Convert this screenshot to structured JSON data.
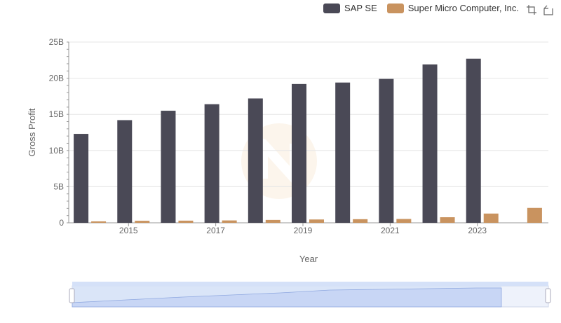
{
  "legend": [
    {
      "name": "SAP SE",
      "color": "#4a4956"
    },
    {
      "name": "Super Micro Computer, Inc.",
      "color": "#c9935f"
    }
  ],
  "toolbox": [
    "zoom-icon",
    "zoom-reset-icon"
  ],
  "chart_data": {
    "type": "bar",
    "xlabel": "Year",
    "ylabel": "Gross Profit",
    "categories": [
      "2014",
      "2015",
      "2016",
      "2017",
      "2018",
      "2019",
      "2020",
      "2021",
      "2022",
      "2023",
      "2024"
    ],
    "x_tick_labels": [
      "2015",
      "2017",
      "2019",
      "2021",
      "2023"
    ],
    "y_tick_labels": [
      "0",
      "5B",
      "10B",
      "15B",
      "20B",
      "25B"
    ],
    "ylim": [
      0,
      25000000000
    ],
    "grid": true,
    "legend_position": "top-right",
    "series": [
      {
        "name": "SAP SE",
        "color": "#4a4956",
        "values": [
          12300000000,
          14200000000,
          15500000000,
          16400000000,
          17200000000,
          19200000000,
          19400000000,
          19900000000,
          21900000000,
          22700000000,
          null
        ]
      },
      {
        "name": "Super Micro Computer, Inc.",
        "color": "#c9935f",
        "values": [
          200000000,
          280000000,
          300000000,
          330000000,
          400000000,
          460000000,
          500000000,
          530000000,
          770000000,
          1280000000,
          2060000000
        ]
      }
    ]
  }
}
